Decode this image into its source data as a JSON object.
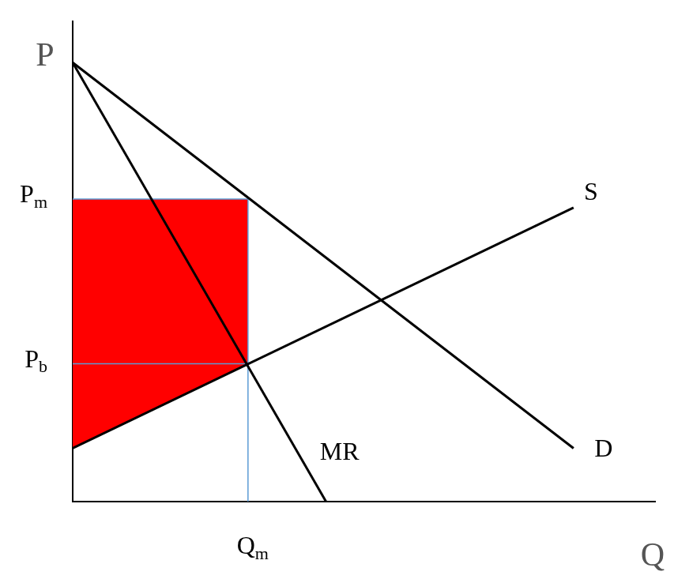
{
  "chart_data": {
    "type": "line",
    "x_label": "Q",
    "y_label": "P",
    "xlim": [
      0,
      100
    ],
    "ylim": [
      0,
      100
    ],
    "tick_labels": false,
    "grid": false,
    "series": [
      {
        "name": "D",
        "color": "#000000",
        "x": [
          0,
          86.0
        ],
        "values": [
          91.4,
          11.1
        ]
      },
      {
        "name": "MR",
        "color": "#000000",
        "x": [
          0,
          43.5
        ],
        "values": [
          91.4,
          0
        ]
      },
      {
        "name": "S",
        "color": "#000000",
        "x": [
          0,
          86.0
        ],
        "values": [
          11.1,
          61.2
        ]
      }
    ],
    "shaded_area": {
      "color": "#ff0000",
      "x": [
        0,
        30.1,
        30.1,
        0
      ],
      "values": [
        63.0,
        63.0,
        28.7,
        11.1
      ]
    },
    "guide_color": "#5b9bd5",
    "guides": [
      {
        "label": "Pm",
        "axis": "y",
        "value": 63.0,
        "extent": 30.1
      },
      {
        "label": "Pb",
        "axis": "y",
        "value": 28.7,
        "extent": 30.1
      },
      {
        "label": "Qm",
        "axis": "x",
        "value": 30.1,
        "extent": 63.0
      }
    ]
  }
}
